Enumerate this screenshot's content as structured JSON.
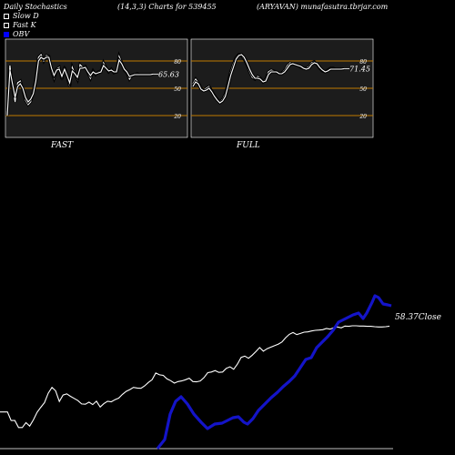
{
  "header": {
    "left": "Daily Stochastics",
    "params": "(14,3,3) Charts for 539455",
    "right": "(ARYAVAN) munafasutra.tbrjar.com"
  },
  "legend": [
    {
      "label": "Slow  D",
      "color": "#ffffff"
    },
    {
      "label": "Fast K",
      "color": "#ffffff"
    },
    {
      "label": "OBV",
      "color": "#0000ff"
    }
  ],
  "colors": {
    "panel_bg": "#1c1c1c",
    "level_line": "#c07a00",
    "obv": "#1414c8",
    "close": "#ffffff"
  },
  "chart_data": [
    {
      "type": "line",
      "title": "FAST",
      "last_value_label": "65.63",
      "ylim": [
        0,
        100
      ],
      "y_ticks": [
        "80",
        "50",
        "20"
      ],
      "levels": [
        80,
        50,
        20
      ],
      "x": [
        0,
        1,
        2,
        3,
        4,
        5,
        6,
        7,
        8,
        9,
        10,
        11,
        12,
        13,
        14,
        15,
        16,
        17,
        18,
        19,
        20,
        21,
        22,
        23,
        24,
        25,
        26,
        27,
        28,
        29,
        30,
        31,
        32,
        33,
        34,
        35,
        36,
        37,
        38,
        39,
        40,
        41,
        42,
        43,
        44,
        45,
        46,
        47,
        48,
        49,
        50,
        51,
        52,
        53,
        54,
        55,
        56
      ],
      "series": [
        {
          "values": [
            25,
            75,
            52,
            35,
            56,
            58,
            49,
            37,
            32,
            35,
            46,
            61,
            84,
            87,
            80,
            86,
            85,
            69,
            61,
            71,
            73,
            60,
            73,
            63,
            52,
            73,
            66,
            60,
            76,
            73,
            74,
            67,
            61,
            69,
            65,
            68,
            69,
            78,
            72,
            68,
            71,
            67,
            68,
            85,
            78,
            70,
            67,
            60,
            64,
            65,
            66,
            65,
            65,
            65,
            65,
            65,
            65.6
          ]
        },
        {
          "values": [
            20,
            70,
            55,
            40,
            52,
            55,
            50,
            40,
            35,
            38,
            44,
            58,
            80,
            84,
            82,
            84,
            84,
            72,
            64,
            70,
            71,
            63,
            71,
            64,
            56,
            69,
            66,
            62,
            72,
            72,
            73,
            68,
            64,
            68,
            66,
            67,
            68,
            75,
            72,
            69,
            70,
            68,
            68,
            81,
            77,
            71,
            68,
            63,
            64,
            65,
            65,
            65,
            65,
            65,
            65,
            65,
            65.6
          ]
        }
      ]
    },
    {
      "type": "line",
      "title": "FULL",
      "last_value_label": "71.45",
      "ylim": [
        0,
        100
      ],
      "y_ticks": [
        "80",
        "50",
        "20"
      ],
      "levels": [
        80,
        50,
        20
      ],
      "x": [
        0,
        1,
        2,
        3,
        4,
        5,
        6,
        7,
        8,
        9,
        10,
        11,
        12,
        13,
        14,
        15,
        16,
        17,
        18,
        19,
        20,
        21,
        22,
        23,
        24,
        25,
        26,
        27,
        28,
        29,
        30,
        31,
        32,
        33,
        34,
        35,
        36,
        37,
        38,
        39,
        40,
        41,
        42,
        43,
        44,
        45,
        46,
        47,
        48,
        49,
        50,
        51,
        52,
        53,
        54,
        55,
        56
      ],
      "series": [
        {
          "values": [
            55,
            60,
            56,
            50,
            48,
            50,
            52,
            47,
            42,
            38,
            35,
            38,
            44,
            55,
            68,
            77,
            84,
            87,
            86,
            82,
            76,
            68,
            62,
            60,
            63,
            61,
            57,
            60,
            68,
            70,
            69,
            68,
            66,
            67,
            70,
            75,
            78,
            77,
            76,
            75,
            73,
            72,
            72,
            74,
            78,
            79,
            76,
            72,
            69,
            68,
            70,
            72,
            72,
            71,
            71,
            71,
            71.4
          ]
        },
        {
          "values": [
            52,
            57,
            55,
            49,
            47,
            48,
            50,
            46,
            41,
            37,
            34,
            36,
            41,
            52,
            64,
            73,
            82,
            86,
            87,
            84,
            78,
            71,
            65,
            61,
            61,
            60,
            57,
            58,
            65,
            68,
            68,
            68,
            66,
            66,
            68,
            72,
            76,
            77,
            76,
            75,
            74,
            72,
            71,
            72,
            76,
            78,
            77,
            73,
            70,
            68,
            69,
            71,
            71,
            71,
            71,
            71,
            71.4
          ]
        }
      ]
    },
    {
      "type": "line",
      "last_value_label": "58.37",
      "last_value_suffix": "Close",
      "x": [
        0,
        1,
        2,
        3,
        4,
        5,
        6,
        7,
        8,
        9,
        10,
        11,
        12,
        13,
        14,
        15,
        16,
        17,
        18,
        19,
        20,
        21,
        22,
        23,
        24,
        25,
        26,
        27,
        28,
        29,
        30,
        31,
        32,
        33,
        34,
        35,
        36,
        37,
        38,
        39,
        40,
        41,
        42,
        43,
        44,
        45,
        46,
        47,
        48,
        49,
        50,
        51,
        52,
        53,
        54,
        55,
        56,
        57,
        58,
        59,
        60,
        61,
        62,
        63,
        64,
        65,
        66,
        67,
        68,
        69,
        70,
        71,
        72,
        73,
        74,
        75,
        76,
        77,
        78,
        79,
        80,
        81,
        82,
        83,
        84,
        85,
        86,
        87,
        88,
        89,
        90,
        91,
        92,
        93,
        94,
        95,
        96,
        97,
        98,
        99,
        100,
        101,
        102,
        103,
        104,
        105
      ],
      "series": [
        {
          "name": "Close",
          "values": [
            30.4,
            30.4,
            30.4,
            27.6,
            27.6,
            25.3,
            25.3,
            26.9,
            25.8,
            27.8,
            30.3,
            31.9,
            33.4,
            36.5,
            38.4,
            37.3,
            33.8,
            35.9,
            36.3,
            35.5,
            34.8,
            34.1,
            33.0,
            32.9,
            33.6,
            32.8,
            33.9,
            32.0,
            33.1,
            33.9,
            33.7,
            34.4,
            34.9,
            36.1,
            37.1,
            37.7,
            38.4,
            38.2,
            38.1,
            38.9,
            40.0,
            40.9,
            43.1,
            42.5,
            42.3,
            41.2,
            40.6,
            39.8,
            40.3,
            40.5,
            40.9,
            41.4,
            40.3,
            40.2,
            40.5,
            41.6,
            43.2,
            43.4,
            43.9,
            43.3,
            43.4,
            44.6,
            45.1,
            44.3,
            46.0,
            48.2,
            48.6,
            47.9,
            48.9,
            50.1,
            51.4,
            50.2,
            51.0,
            51.5,
            52.0,
            52.5,
            53.2,
            54.6,
            55.7,
            56.3,
            55.6,
            56.0,
            56.4,
            56.5,
            56.8,
            57.0,
            57.1,
            57.2,
            57.6,
            57.4,
            57.9,
            58.1,
            57.8,
            58.4,
            58.3,
            58.5,
            58.5,
            58.4,
            58.4,
            58.3,
            58.3,
            58.2,
            58.1,
            58.1,
            58.2,
            58.37
          ]
        },
        {
          "name": "OBV",
          "values": [
            null,
            null,
            null,
            null,
            null,
            null,
            null,
            null,
            null,
            null,
            null,
            null,
            null,
            null,
            null,
            null,
            null,
            null,
            null,
            null,
            null,
            null,
            null,
            null,
            null,
            null,
            null,
            null,
            null,
            null,
            null,
            null,
            null,
            null,
            null,
            null,
            null,
            null,
            null,
            null,
            null,
            null,
            null,
            null,
            null,
            null,
            null,
            null,
            null,
            null,
            null,
            null,
            null,
            null,
            null,
            null,
            null,
            null,
            null,
            null,
            null,
            null,
            null,
            null,
            null,
            null,
            null,
            null,
            null,
            null,
            null,
            null,
            null,
            null,
            null,
            null,
            null,
            null,
            null,
            null,
            null,
            null,
            null,
            null,
            null,
            null,
            null,
            null,
            null,
            null,
            null,
            null,
            null,
            null,
            null,
            null,
            null,
            null,
            null,
            null,
            null,
            null,
            null,
            null,
            null,
            null
          ]
        }
      ]
    }
  ]
}
